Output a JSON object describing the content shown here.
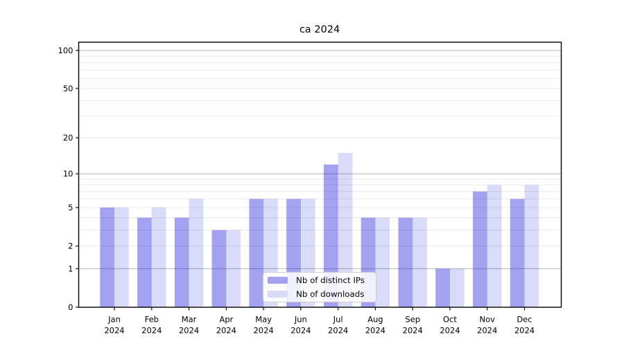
{
  "page": {
    "background": "#ffffff"
  },
  "chart_data": {
    "type": "bar",
    "title": "ca 2024",
    "categories": [
      "Jan",
      "Feb",
      "Mar",
      "Apr",
      "May",
      "Jun",
      "Jul",
      "Aug",
      "Sep",
      "Oct",
      "Nov",
      "Dec"
    ],
    "category_year": "2024",
    "series": [
      {
        "name": "Nb of distinct IPs",
        "legend_color": "#a2a2f1",
        "fill": "rgba(34,34,221,0.42)",
        "values": [
          5,
          4,
          4,
          3,
          6,
          6,
          12,
          4,
          4,
          1,
          7,
          6
        ]
      },
      {
        "name": "Nb of downloads",
        "legend_color": "#d9d9f8",
        "fill": "rgba(34,34,221,0.17)",
        "values": [
          5,
          5,
          6,
          3,
          6,
          6,
          15,
          4,
          4,
          1,
          8,
          8
        ]
      }
    ],
    "yscale": "log1p",
    "ylim": [
      0,
      116
    ],
    "yticks": [
      0,
      1,
      2,
      5,
      10,
      20,
      50,
      100
    ],
    "major_gridlines": [
      1,
      10,
      100
    ],
    "minor_gridlines": [
      2,
      3,
      4,
      5,
      6,
      7,
      8,
      9,
      20,
      30,
      40,
      50,
      60,
      70,
      80,
      90
    ],
    "colors": {
      "grid_major": "#b3b3b3",
      "grid_minor": "#e9e9e9",
      "axis": "#000000",
      "tick_label": "#000000"
    },
    "legend": {
      "position": "lower center"
    }
  }
}
